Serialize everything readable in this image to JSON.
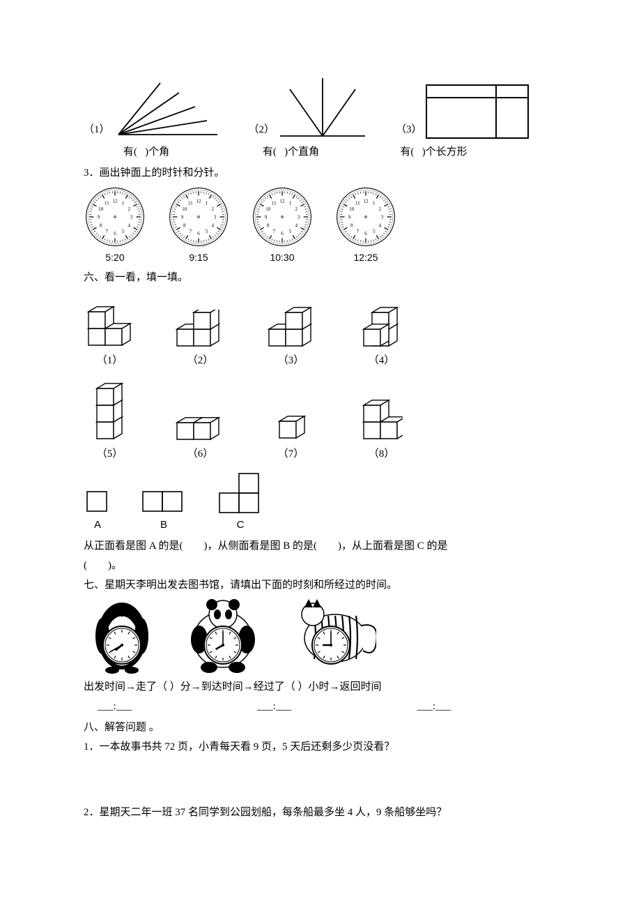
{
  "angles": {
    "item1": {
      "num": "（1）",
      "caption_prefix": "有(",
      "caption_suffix": ")个角"
    },
    "item2": {
      "num": "（2）",
      "caption_prefix": "有(",
      "caption_suffix": ")个直角"
    },
    "item3": {
      "num": "（3）",
      "caption_prefix": "有(",
      "caption_suffix": ")个长方形"
    }
  },
  "q3_title": "3．画出钟面上的时针和分针。",
  "clocks": {
    "times": [
      "5:20",
      "9:15",
      "10:30",
      "12:25"
    ]
  },
  "section6_title": "六、看一看，填一填。",
  "cubes": {
    "row1": [
      "（1）",
      "（2）",
      "（3）",
      "（4）"
    ],
    "row2": [
      "（5）",
      "（6）",
      "（7）",
      "（8）"
    ]
  },
  "views": {
    "labels": [
      "A",
      "B",
      "C"
    ],
    "question_part1": "从正面看是图 A 的是(",
    "question_part2": ")，从侧面看是图 B 的是(",
    "question_part3": ")，从上面看是图 C 的是",
    "question_part4": "(",
    "question_part5": ")。"
  },
  "section7_title": "七、星期天李明出发去图书馆，请填出下面的时刻和所经过的时间。",
  "section7_line": "出发时间→走了（   ）分→到达时间→经过了（   ）小时→返回时间",
  "time_blank": "___:___",
  "section8_title": "八、解答问题 。",
  "section8_q1": "1．一本故事书共 72 页，小青每天看 9 页，5 天后还剩多少页没看？",
  "section8_q2": "2．星期天二年一班 37 名同学到公园划船，每条船最多坐 4 人，9 条船够坐吗？",
  "clock_numbers": [
    "12",
    "1",
    "2",
    "3",
    "4",
    "5",
    "6",
    "7",
    "8",
    "9",
    "10",
    "11"
  ],
  "colors": {
    "stroke": "#000000",
    "bg": "#ffffff"
  }
}
